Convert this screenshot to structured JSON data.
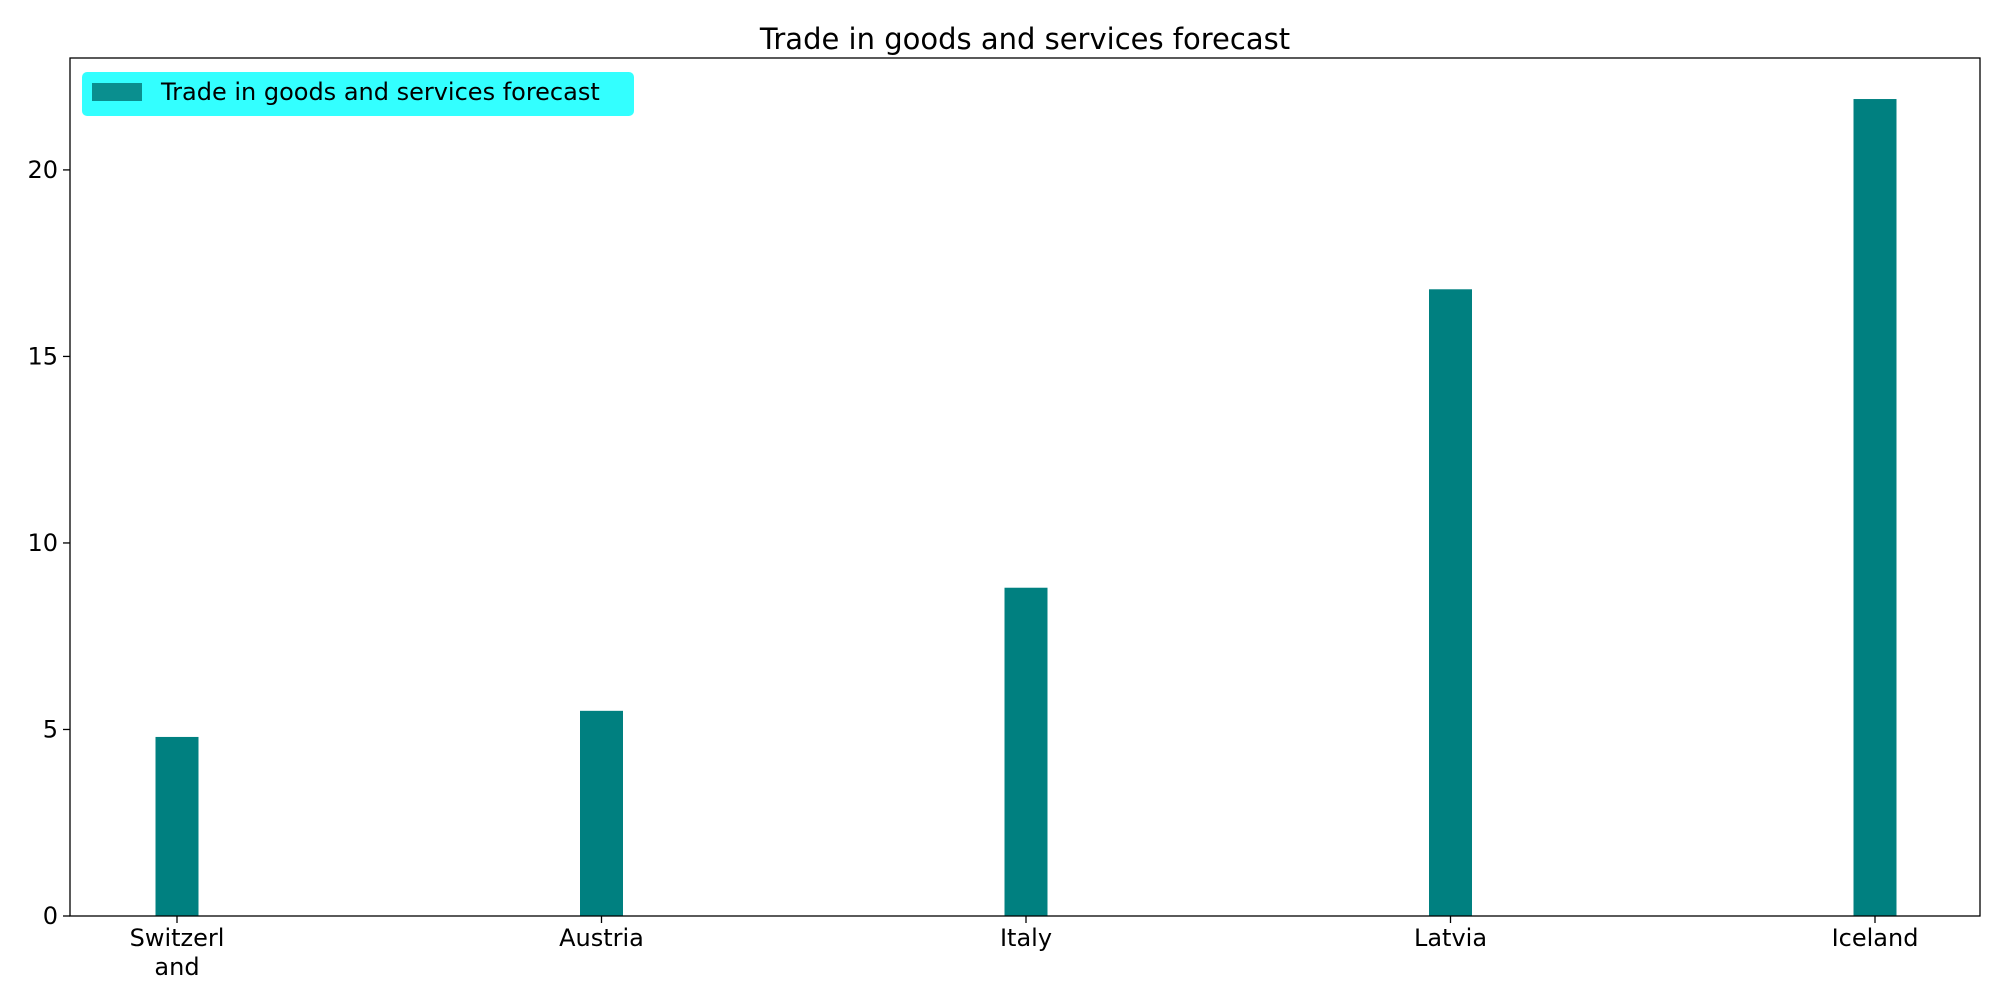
{
  "chart_data": {
    "type": "bar",
    "title": "Trade in goods and services forecast",
    "categories": [
      "Switzerland",
      "Austria",
      "Italy",
      "Latvia",
      "Iceland"
    ],
    "tick_labels": [
      [
        "Switzerl",
        "and"
      ],
      [
        "Austria"
      ],
      [
        "Italy"
      ],
      [
        "Latvia"
      ],
      [
        "Iceland"
      ]
    ],
    "series": [
      {
        "name": "Trade in goods and services forecast",
        "values": [
          4.8,
          5.5,
          8.8,
          16.8,
          21.9
        ]
      }
    ],
    "yticks": [
      0,
      5,
      10,
      15,
      20
    ],
    "ytick_labels": [
      "0",
      "5",
      "10",
      "15",
      "20"
    ],
    "ylim": [
      0,
      23
    ],
    "xlabel": "",
    "ylabel": "",
    "grid": false,
    "legend_position": "top-left",
    "colors": {
      "bar": "#008080",
      "legend_background": "#33ffff",
      "legend_swatch": "#0a8f8f",
      "axis": "#000000"
    }
  }
}
